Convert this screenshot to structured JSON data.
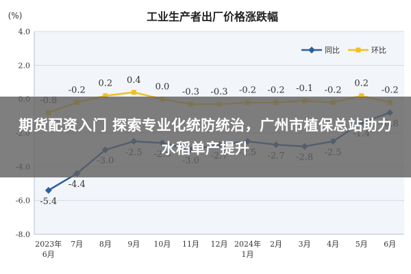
{
  "chart_data": {
    "type": "line",
    "title": "工业生产者出厂价格涨跌幅",
    "unit_label": "(%)",
    "categories": [
      [
        "2023年",
        "6月"
      ],
      [
        "7月"
      ],
      [
        "8月"
      ],
      [
        "9月"
      ],
      [
        "10月"
      ],
      [
        "11月"
      ],
      [
        "12月"
      ],
      [
        "2024年",
        "1月"
      ],
      [
        "2月"
      ],
      [
        "3月"
      ],
      [
        "4月"
      ],
      [
        "5月"
      ],
      [
        "6月"
      ]
    ],
    "ylim": [
      -8.0,
      4.0
    ],
    "yticks": [
      "4.0",
      "2.0",
      "0.0",
      "-2.0",
      "-4.0",
      "-6.0",
      "-8.0"
    ],
    "grid": true,
    "legend": "top-right",
    "series": [
      {
        "name": "同比",
        "color": "#2a5f9e",
        "marker": "diamond",
        "values": [
          -5.4,
          -4.4,
          -3.0,
          -2.5,
          -2.6,
          -3.0,
          -2.7,
          -2.5,
          -2.7,
          -2.8,
          -2.5,
          -1.4,
          -0.8
        ],
        "labels": [
          "-5.4",
          "-4.4",
          "-3.0",
          "-2.5",
          "-2.6",
          "-3.0",
          "-2.7",
          "-2.5",
          "-2.7",
          "-2.8",
          "-2.5",
          "-1.4",
          "-0.8"
        ]
      },
      {
        "name": "环比",
        "color": "#f2c01e",
        "marker": "square",
        "values": [
          -0.8,
          -0.2,
          0.2,
          0.4,
          0.0,
          -0.3,
          -0.3,
          -0.2,
          -0.2,
          -0.1,
          -0.2,
          0.2,
          -0.2
        ],
        "labels": [
          "-0.8",
          "-0.2",
          "0.2",
          "0.4",
          "0.0",
          "-0.3",
          "-0.3",
          "-0.2",
          "-0.2",
          "-0.1",
          "-0.2",
          "0.2",
          "-0.2"
        ]
      }
    ]
  },
  "overlay": {
    "headline": "期货配资入门 探索专业化统防统治，广州市植保总站助力水稻单产提升"
  }
}
